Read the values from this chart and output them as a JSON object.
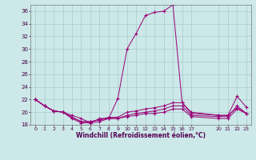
{
  "xlabel": "Windchill (Refroidissement éolien,°C)",
  "background_color": "#cce8e8",
  "grid_color": "#aacccc",
  "line_color": "#990077",
  "ylim": [
    18,
    37
  ],
  "xlim": [
    -0.5,
    23.5
  ],
  "yticks": [
    18,
    20,
    22,
    24,
    26,
    28,
    30,
    32,
    34,
    36
  ],
  "xtick_positions": [
    0,
    1,
    2,
    3,
    4,
    5,
    6,
    7,
    8,
    9,
    10,
    11,
    12,
    13,
    14,
    15,
    16,
    17,
    20,
    21,
    22,
    23
  ],
  "xtick_labels": [
    "0",
    "1",
    "2",
    "3",
    "4",
    "5",
    "6",
    "7",
    "8",
    "9",
    "10",
    "11",
    "12",
    "13",
    "14",
    "15",
    "16",
    "17",
    "20",
    "21",
    "22",
    "23"
  ],
  "series": [
    {
      "x": [
        0,
        1,
        2,
        3,
        4,
        5,
        6,
        7,
        8,
        9,
        10,
        11,
        12,
        13,
        14,
        15,
        16,
        17,
        20,
        21,
        22,
        23
      ],
      "y": [
        22.0,
        21.0,
        20.2,
        20.0,
        19.5,
        19.0,
        18.3,
        19.0,
        19.0,
        22.2,
        30.0,
        32.5,
        35.3,
        35.8,
        36.0,
        37.0,
        21.5,
        20.0,
        19.5,
        19.5,
        20.7,
        19.8
      ]
    },
    {
      "x": [
        0,
        1,
        2,
        3,
        4,
        5,
        6,
        7,
        8,
        9,
        10,
        11,
        12,
        13,
        14,
        15,
        16,
        17,
        20,
        21,
        22,
        23
      ],
      "y": [
        22.0,
        21.0,
        20.2,
        20.0,
        19.2,
        18.5,
        18.5,
        18.8,
        19.2,
        19.2,
        20.0,
        20.2,
        20.5,
        20.7,
        21.0,
        21.5,
        21.5,
        19.8,
        19.5,
        19.5,
        22.5,
        20.8
      ]
    },
    {
      "x": [
        0,
        1,
        2,
        3,
        4,
        5,
        6,
        7,
        8,
        9,
        10,
        11,
        12,
        13,
        14,
        15,
        16,
        17,
        20,
        21,
        22,
        23
      ],
      "y": [
        22.0,
        21.0,
        20.2,
        20.0,
        19.2,
        18.5,
        18.5,
        18.8,
        19.0,
        19.0,
        19.5,
        19.8,
        20.0,
        20.2,
        20.5,
        21.0,
        21.0,
        19.5,
        19.3,
        19.3,
        21.0,
        19.8
      ]
    },
    {
      "x": [
        0,
        1,
        2,
        3,
        4,
        5,
        6,
        7,
        8,
        9,
        10,
        11,
        12,
        13,
        14,
        15,
        16,
        17,
        20,
        21,
        22,
        23
      ],
      "y": [
        22.0,
        21.0,
        20.2,
        20.0,
        19.0,
        18.3,
        18.3,
        18.5,
        19.0,
        19.0,
        19.3,
        19.5,
        19.8,
        19.8,
        20.0,
        20.5,
        20.5,
        19.3,
        19.0,
        19.0,
        20.5,
        19.8
      ]
    }
  ]
}
